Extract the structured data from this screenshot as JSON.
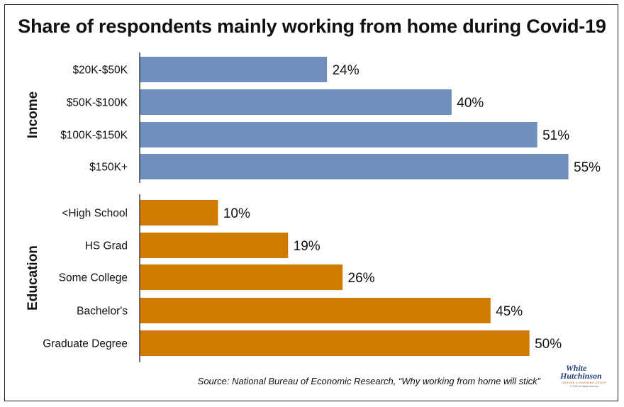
{
  "chart_data": {
    "type": "bar",
    "title": "Share of respondents mainly working from home during Covid-19",
    "orientation": "horizontal",
    "xlim": [
      0,
      55
    ],
    "groups": [
      {
        "name": "Income",
        "color": "#6f8fbd",
        "categories": [
          "$20K-$50K",
          "$50K-$100K",
          "$100K-$150K",
          "$150K+"
        ],
        "values": [
          24,
          40,
          51,
          55
        ],
        "labels": [
          "24%",
          "40%",
          "51%",
          "55%"
        ]
      },
      {
        "name": "Education",
        "color": "#d17a00",
        "categories": [
          "<High School",
          "HS Grad",
          "Some College",
          "Bachelor's",
          "Graduate Degree"
        ],
        "values": [
          10,
          19,
          26,
          45,
          50
        ],
        "labels": [
          "10%",
          "19%",
          "26%",
          "45%",
          "50%"
        ]
      }
    ]
  },
  "source": "Source: National Bureau of Economic Research, “Why working from home will stick”",
  "logo": {
    "line1": "White",
    "line2": "Hutchinson",
    "tagline": "LEISURE & LEARNING GROUP",
    "copyright": "© 2021 all rights reserved"
  }
}
